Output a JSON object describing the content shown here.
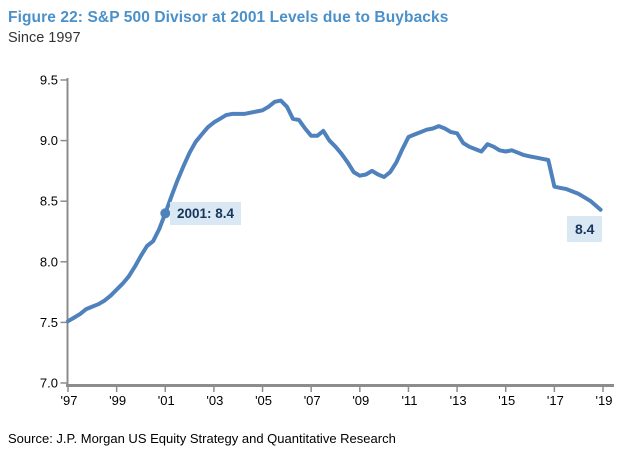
{
  "header": {
    "title": "Figure 22: S&P 500 Divisor at 2001 Levels due to Buybacks",
    "subtitle": "Since 1997"
  },
  "footer": {
    "source": "Source: J.P. Morgan US Equity Strategy and Quantitative Research"
  },
  "colors": {
    "title_blue": "#4A90C9",
    "line_blue": "#4F81BD",
    "axis_gray": "#8C8C8C",
    "tick_text": "#000000",
    "annotation_bg": "#D9E8F2",
    "annotation_text": "#17365D"
  },
  "chart_data": {
    "type": "line",
    "title": "Figure 22: S&P 500 Divisor at 2001 Levels due to Buybacks",
    "subtitle": "Since 1997",
    "xlabel": "",
    "ylabel": "",
    "grid": false,
    "legend": "none",
    "ylim": [
      7.0,
      9.5
    ],
    "ytick_step": 0.5,
    "ytick_labels": [
      "7.0",
      "7.5",
      "8.0",
      "8.5",
      "9.0",
      "9.5"
    ],
    "xlim": [
      1997,
      2019
    ],
    "xtick_years": [
      1997,
      1999,
      2001,
      2003,
      2005,
      2007,
      2009,
      2011,
      2013,
      2015,
      2017,
      2019
    ],
    "xtick_labels": [
      "'97",
      "'99",
      "'01",
      "'03",
      "'05",
      "'07",
      "'09",
      "'11",
      "'13",
      "'15",
      "'17",
      "'19"
    ],
    "x": [
      1997.0,
      1997.25,
      1997.5,
      1997.75,
      1998.0,
      1998.25,
      1998.5,
      1998.75,
      1999.0,
      1999.25,
      1999.5,
      1999.75,
      2000.0,
      2000.25,
      2000.5,
      2000.75,
      2001.0,
      2001.25,
      2001.5,
      2001.75,
      2002.0,
      2002.25,
      2002.5,
      2002.75,
      2003.0,
      2003.25,
      2003.5,
      2003.75,
      2004.0,
      2004.25,
      2004.5,
      2004.75,
      2005.0,
      2005.25,
      2005.5,
      2005.75,
      2006.0,
      2006.25,
      2006.5,
      2006.75,
      2007.0,
      2007.25,
      2007.5,
      2007.75,
      2008.0,
      2008.25,
      2008.5,
      2008.75,
      2009.0,
      2009.25,
      2009.5,
      2009.75,
      2010.0,
      2010.25,
      2010.5,
      2010.75,
      2011.0,
      2011.25,
      2011.5,
      2011.75,
      2012.0,
      2012.25,
      2012.5,
      2012.75,
      2013.0,
      2013.25,
      2013.5,
      2013.75,
      2014.0,
      2014.25,
      2014.5,
      2014.75,
      2015.0,
      2015.25,
      2015.5,
      2015.75,
      2016.0,
      2016.25,
      2016.5,
      2016.75,
      2017.0,
      2017.25,
      2017.5,
      2017.75,
      2018.0,
      2018.25,
      2018.5,
      2018.9
    ],
    "series": [
      {
        "name": "S&P 500 Divisor",
        "values": [
          7.51,
          7.54,
          7.57,
          7.61,
          7.63,
          7.65,
          7.68,
          7.72,
          7.77,
          7.82,
          7.88,
          7.96,
          8.05,
          8.13,
          8.17,
          8.27,
          8.4,
          8.54,
          8.67,
          8.79,
          8.9,
          8.99,
          9.05,
          9.11,
          9.15,
          9.18,
          9.21,
          9.22,
          9.22,
          9.22,
          9.23,
          9.24,
          9.25,
          9.28,
          9.32,
          9.33,
          9.28,
          9.18,
          9.17,
          9.1,
          9.04,
          9.04,
          9.08,
          9.0,
          8.95,
          8.89,
          8.82,
          8.74,
          8.71,
          8.72,
          8.75,
          8.72,
          8.7,
          8.74,
          8.82,
          8.93,
          9.03,
          9.05,
          9.07,
          9.09,
          9.1,
          9.12,
          9.1,
          9.07,
          9.06,
          8.98,
          8.95,
          8.93,
          8.91,
          8.97,
          8.95,
          8.92,
          8.91,
          8.92,
          8.9,
          8.88,
          8.87,
          8.86,
          8.85,
          8.84,
          8.62,
          8.61,
          8.6,
          8.58,
          8.56,
          8.53,
          8.5,
          8.43
        ]
      }
    ],
    "marker": {
      "x": 2001,
      "y": 8.4
    },
    "annotations": [
      {
        "label": "2001: 8.4",
        "x": 2001,
        "y": 8.4
      },
      {
        "label": "8.4",
        "x": 2018.9,
        "y": 8.43
      }
    ]
  }
}
